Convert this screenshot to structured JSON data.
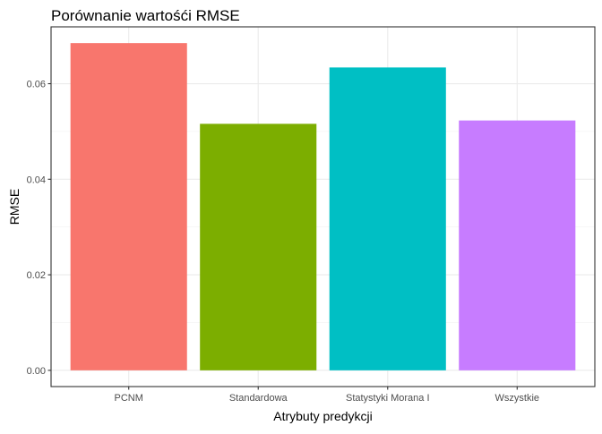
{
  "chart_data": {
    "type": "bar",
    "title": "Porównanie wartośći RMSE",
    "xlabel": "Atrybuty predykcji",
    "ylabel": "RMSE",
    "categories": [
      "PCNM",
      "Standardowa",
      "Statystyki Morana I",
      "Wszystkie"
    ],
    "values": [
      0.0685,
      0.0516,
      0.0634,
      0.0523
    ],
    "colors": [
      "#F8766D",
      "#7CAE00",
      "#00BFC4",
      "#C77CFF"
    ],
    "ylim": [
      -0.0034,
      0.0719
    ],
    "yticks": [
      0.0,
      0.02,
      0.04,
      0.06
    ],
    "ytick_labels": [
      "0.00",
      "0.02",
      "0.04",
      "0.06"
    ],
    "grid": true,
    "legend": "none"
  }
}
